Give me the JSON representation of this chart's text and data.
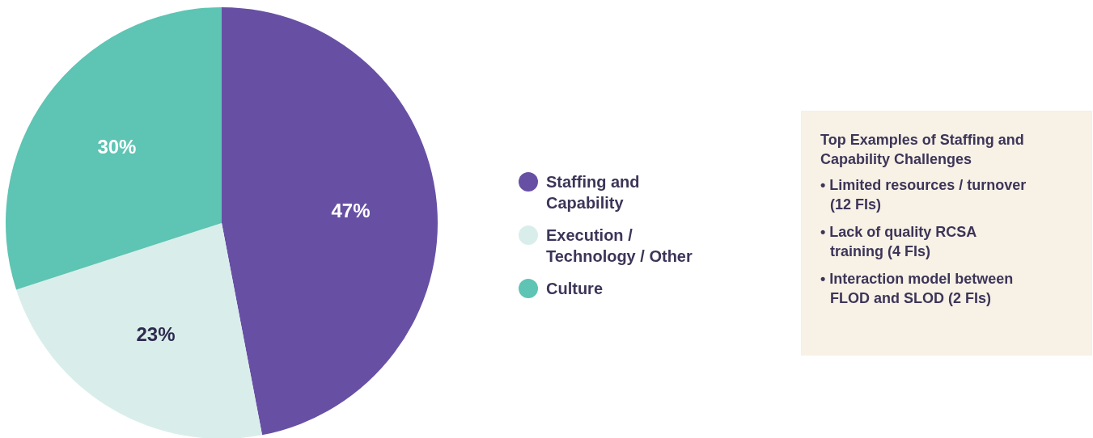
{
  "chart_data": {
    "type": "pie",
    "categories": [
      "Staffing and Capability",
      "Execution / Technology / Other",
      "Culture"
    ],
    "values": [
      47,
      23,
      30
    ],
    "colors": [
      "#6750a4",
      "#d9eeeb",
      "#5ec4b3"
    ],
    "value_labels": [
      "47%",
      "23%",
      "30%"
    ],
    "legend": "right",
    "annotations": [
      "Top Examples of Staffing and Capability Challenges",
      "• Limited resources / turnover (12 FIs)",
      "• Lack of quality RCSA training (4 FIs)",
      "• Interaction model between FLOD and SLOD (2 FIs)"
    ]
  }
}
